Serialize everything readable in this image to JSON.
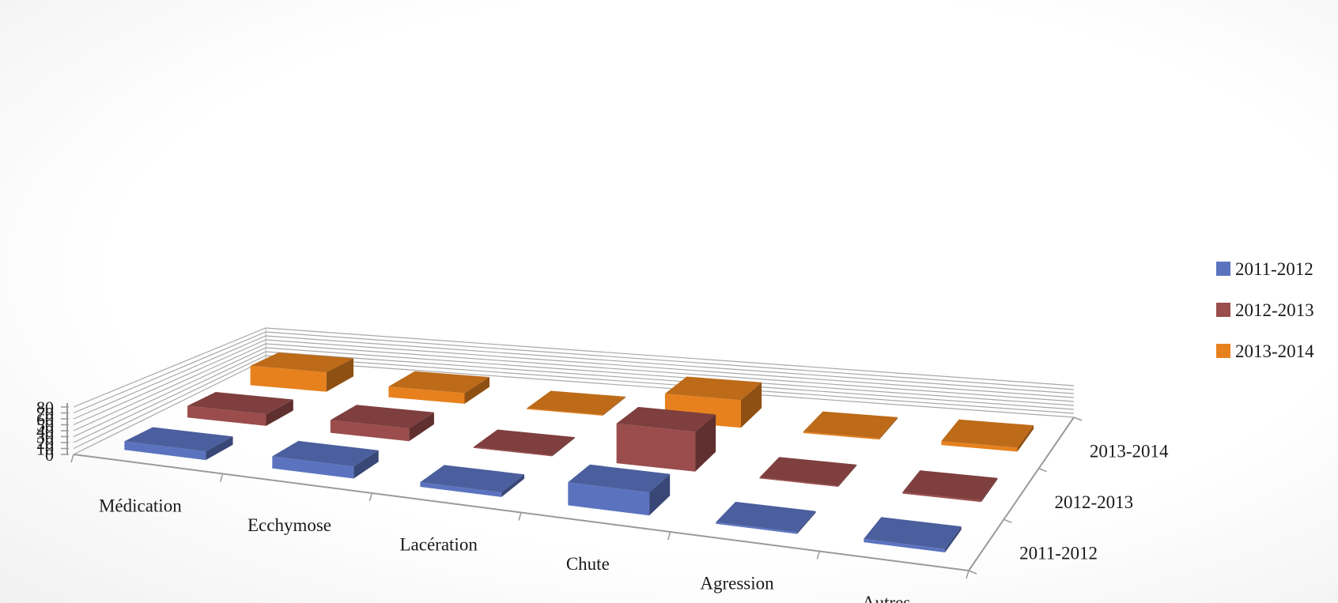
{
  "chart_data": {
    "type": "bar",
    "subtype": "3d-column",
    "title": "",
    "xlabel": "",
    "ylabel": "",
    "ylim": [
      0,
      80
    ],
    "y_ticks": [
      "0",
      "10",
      "20",
      "30",
      "40",
      "50",
      "60",
      "70",
      "80"
    ],
    "grid": true,
    "legend_position": "right",
    "categories": [
      "Médication",
      "Ecchymose",
      "Lacération",
      "Chute",
      "Agression",
      "Autres"
    ],
    "depth_labels": [
      "2011-2012",
      "2012-2013",
      "2013-2014"
    ],
    "series": [
      {
        "name": "2011-2012",
        "color": "#5b73bf",
        "values": [
          15,
          21,
          8,
          40,
          3,
          6
        ]
      },
      {
        "name": "2012-2013",
        "color": "#9a4d4c",
        "values": [
          23,
          25,
          2,
          78,
          2,
          3
        ]
      },
      {
        "name": "2013-2014",
        "color": "#e6811e",
        "values": [
          44,
          24,
          2,
          62,
          3,
          9
        ]
      }
    ]
  }
}
